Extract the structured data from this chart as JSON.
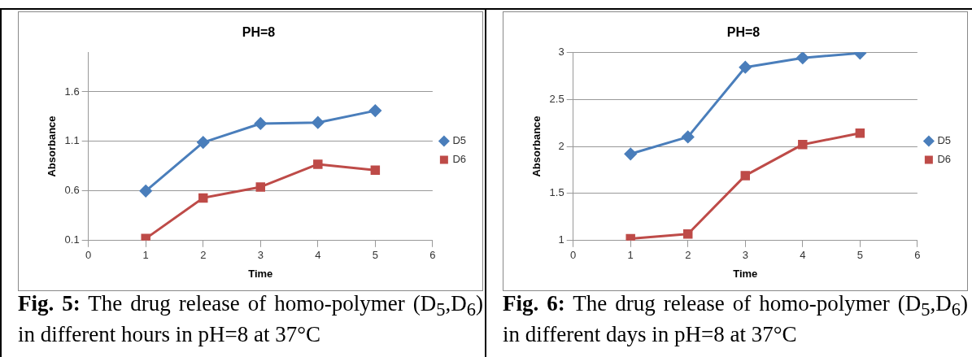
{
  "chart_data": [
    {
      "type": "line",
      "title": "PH=8",
      "xlabel": "Time",
      "ylabel": "Absorbance",
      "x": [
        1,
        2,
        3,
        4,
        5
      ],
      "xlim": [
        0,
        6
      ],
      "xticks": [
        0,
        1,
        2,
        3,
        4,
        5,
        6
      ],
      "ylim": [
        0.1,
        2.0
      ],
      "yticks": [
        0.1,
        0.6,
        1.1,
        1.6
      ],
      "grid": "y",
      "legend": "right",
      "line_style": "solid",
      "series": [
        {
          "name": "D5",
          "color": "#4a7ebb",
          "marker": "diamond",
          "values": [
            0.6,
            1.09,
            1.28,
            1.29,
            1.41
          ]
        },
        {
          "name": "D6",
          "color": "#be4b48",
          "marker": "square",
          "values": [
            0.12,
            0.53,
            0.64,
            0.87,
            0.81
          ]
        }
      ],
      "annotations": [
        "Fig. 5: The drug release of homo-polymer (D$_{5}$,D$_{6}$) in different hours in pH=8 at 37°C"
      ]
    },
    {
      "type": "line",
      "title": "PH=8",
      "xlabel": "Time",
      "ylabel": "Absorbance",
      "x": [
        1,
        2,
        3,
        4,
        5
      ],
      "xlim": [
        0,
        6
      ],
      "xticks": [
        0,
        1,
        2,
        3,
        4,
        5,
        6
      ],
      "ylim": [
        1,
        3
      ],
      "yticks": [
        1,
        1.5,
        2,
        2.5,
        3
      ],
      "grid": "y",
      "legend": "right",
      "line_style": "solid",
      "series": [
        {
          "name": "D5",
          "color": "#4a7ebb",
          "marker": "diamond",
          "values": [
            1.92,
            2.1,
            2.84,
            2.94,
            2.99
          ]
        },
        {
          "name": "D6",
          "color": "#be4b48",
          "marker": "square",
          "values": [
            1.02,
            1.07,
            1.69,
            2.02,
            2.14
          ]
        }
      ],
      "annotations": [
        "Fig. 6: The drug release of homo-polymer (D$_{5}$,D$_{6}$) in different days in pH=8 at 37°C"
      ]
    }
  ]
}
